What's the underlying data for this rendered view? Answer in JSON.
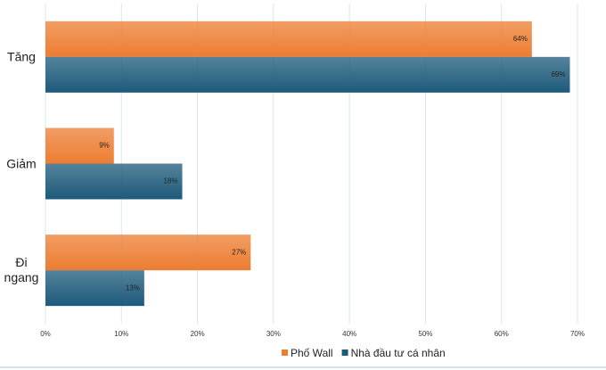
{
  "chart_data": {
    "type": "hbar",
    "categories": [
      "Tăng",
      "Giảm",
      "Đi ngang"
    ],
    "series": [
      {
        "name": "Phố Wall",
        "color": "#ed7d31",
        "values": [
          64,
          9,
          27
        ],
        "value_labels": [
          "64%",
          "9%",
          "27%"
        ]
      },
      {
        "name": "Nhà đầu tư cá nhân",
        "color": "#1d5a7a",
        "values": [
          69,
          18,
          13
        ],
        "value_labels": [
          "69%",
          "18%",
          "13%"
        ]
      }
    ],
    "xlim": [
      0,
      70
    ],
    "xticks": [
      {
        "value": 0,
        "label": "0%"
      },
      {
        "value": 10,
        "label": "10%"
      },
      {
        "value": 20,
        "label": "20%"
      },
      {
        "value": 30,
        "label": "30%"
      },
      {
        "value": 40,
        "label": "40%"
      },
      {
        "value": 50,
        "label": "50%"
      },
      {
        "value": 60,
        "label": "60%"
      },
      {
        "value": 70,
        "label": "70%"
      }
    ],
    "grid": true,
    "legend": "bottom"
  }
}
